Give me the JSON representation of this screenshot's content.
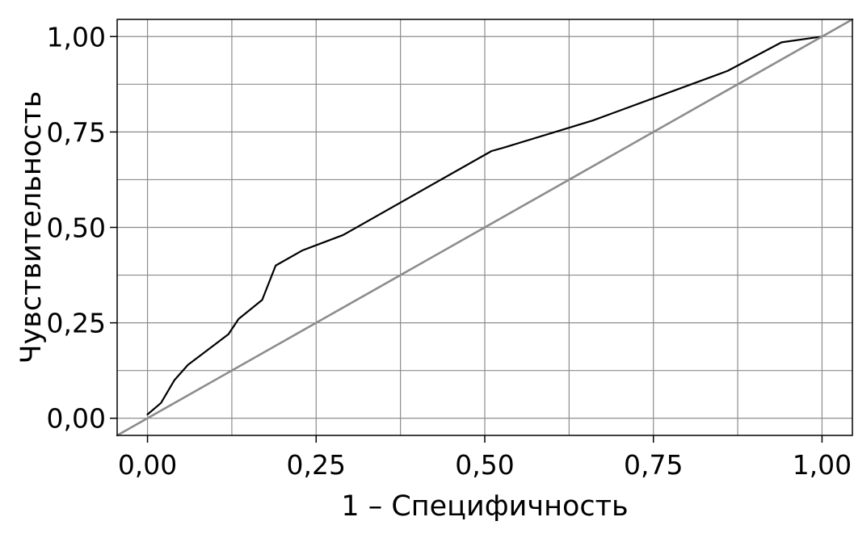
{
  "chart_data": {
    "type": "line",
    "title": "",
    "xlabel": "1 – Специфичность",
    "ylabel": "Чувствительность",
    "xlim": [
      -0.045,
      1.045
    ],
    "ylim": [
      -0.045,
      1.045
    ],
    "grid": true,
    "x_ticks": [
      {
        "value": 0.0,
        "label": "0,00"
      },
      {
        "value": 0.25,
        "label": "0,25"
      },
      {
        "value": 0.5,
        "label": "0,50"
      },
      {
        "value": 0.75,
        "label": "0,75"
      },
      {
        "value": 1.0,
        "label": "1,00"
      }
    ],
    "y_ticks": [
      {
        "value": 0.0,
        "label": "0,00"
      },
      {
        "value": 0.25,
        "label": "0,25"
      },
      {
        "value": 0.5,
        "label": "0,50"
      },
      {
        "value": 0.75,
        "label": "0,75"
      },
      {
        "value": 1.0,
        "label": "1,00"
      }
    ],
    "series": [
      {
        "color": "#000000",
        "points": [
          [
            0.0,
            0.01
          ],
          [
            0.02,
            0.04
          ],
          [
            0.04,
            0.1
          ],
          [
            0.06,
            0.14
          ],
          [
            0.12,
            0.22
          ],
          [
            0.135,
            0.26
          ],
          [
            0.17,
            0.31
          ],
          [
            0.19,
            0.4
          ],
          [
            0.23,
            0.44
          ],
          [
            0.29,
            0.48
          ],
          [
            0.33,
            0.52
          ],
          [
            0.51,
            0.7
          ],
          [
            0.53,
            0.71
          ],
          [
            0.66,
            0.78
          ],
          [
            0.86,
            0.91
          ],
          [
            0.94,
            0.985
          ],
          [
            1.0,
            1.0
          ]
        ]
      },
      {
        "color": "#8c8c8c",
        "points": [
          [
            -0.045,
            -0.045
          ],
          [
            1.045,
            1.045
          ]
        ]
      }
    ],
    "colors": {
      "grid": "#8c8c8c",
      "frame": "#000000",
      "roc_curve": "#000000",
      "reference_line": "#8c8c8c"
    }
  }
}
